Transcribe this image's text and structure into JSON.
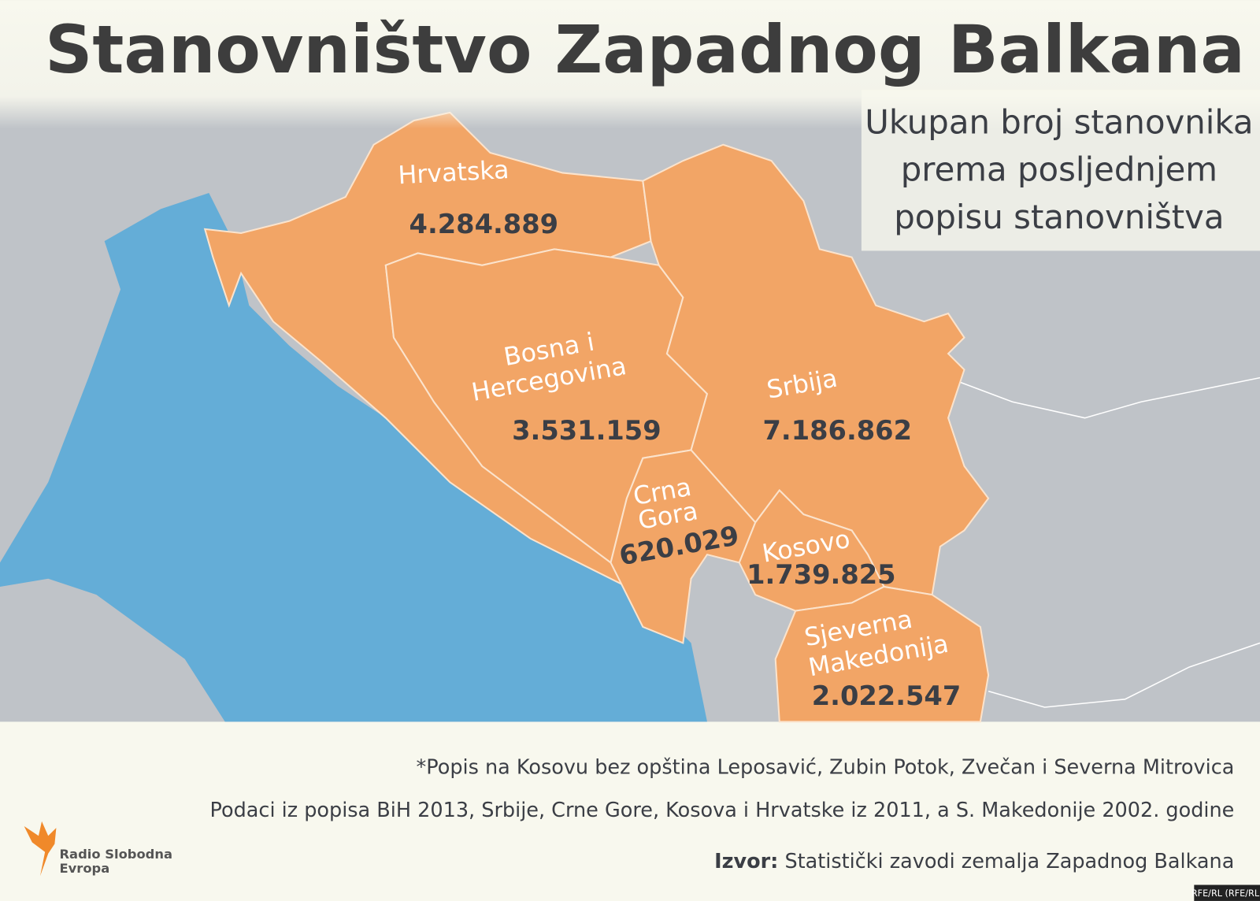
{
  "title": "Stanovništvo Zapadnog Balkana",
  "subtitle": [
    "Ukupan broj stanovnika",
    "prema posljednjem",
    "popisu stanovništva"
  ],
  "regions": [
    {
      "name": [
        "Hrvatska"
      ],
      "population": "4.284.889"
    },
    {
      "name": [
        "Bosna i",
        "Hercegovina"
      ],
      "population": "3.531.159"
    },
    {
      "name": [
        "Srbija"
      ],
      "population": "7.186.862"
    },
    {
      "name": [
        "Crna",
        "Gora"
      ],
      "population": "620.029"
    },
    {
      "name": [
        "Kosovo"
      ],
      "population": "1.739.825"
    },
    {
      "name": [
        "Sjeverna",
        "Makedonija"
      ],
      "population": "2.022.547"
    }
  ],
  "notes": [
    "*Popis na Kosovu bez opština Leposavić, Zubin Potok, Zvečan i Severna Mitrovica",
    "Podaci iz popisa BiH 2013, Srbije, Crne Gore, Kosova i Hrvatske iz 2011, a S. Makedonije 2002. godine"
  ],
  "source": {
    "label": "Izvor:",
    "text": "Statistički zavodi zemalja Zapadnog Balkana"
  },
  "logo": [
    "Radio Slobodna",
    "Evropa"
  ],
  "credit": "RFE/RL (RFE/RL)"
}
